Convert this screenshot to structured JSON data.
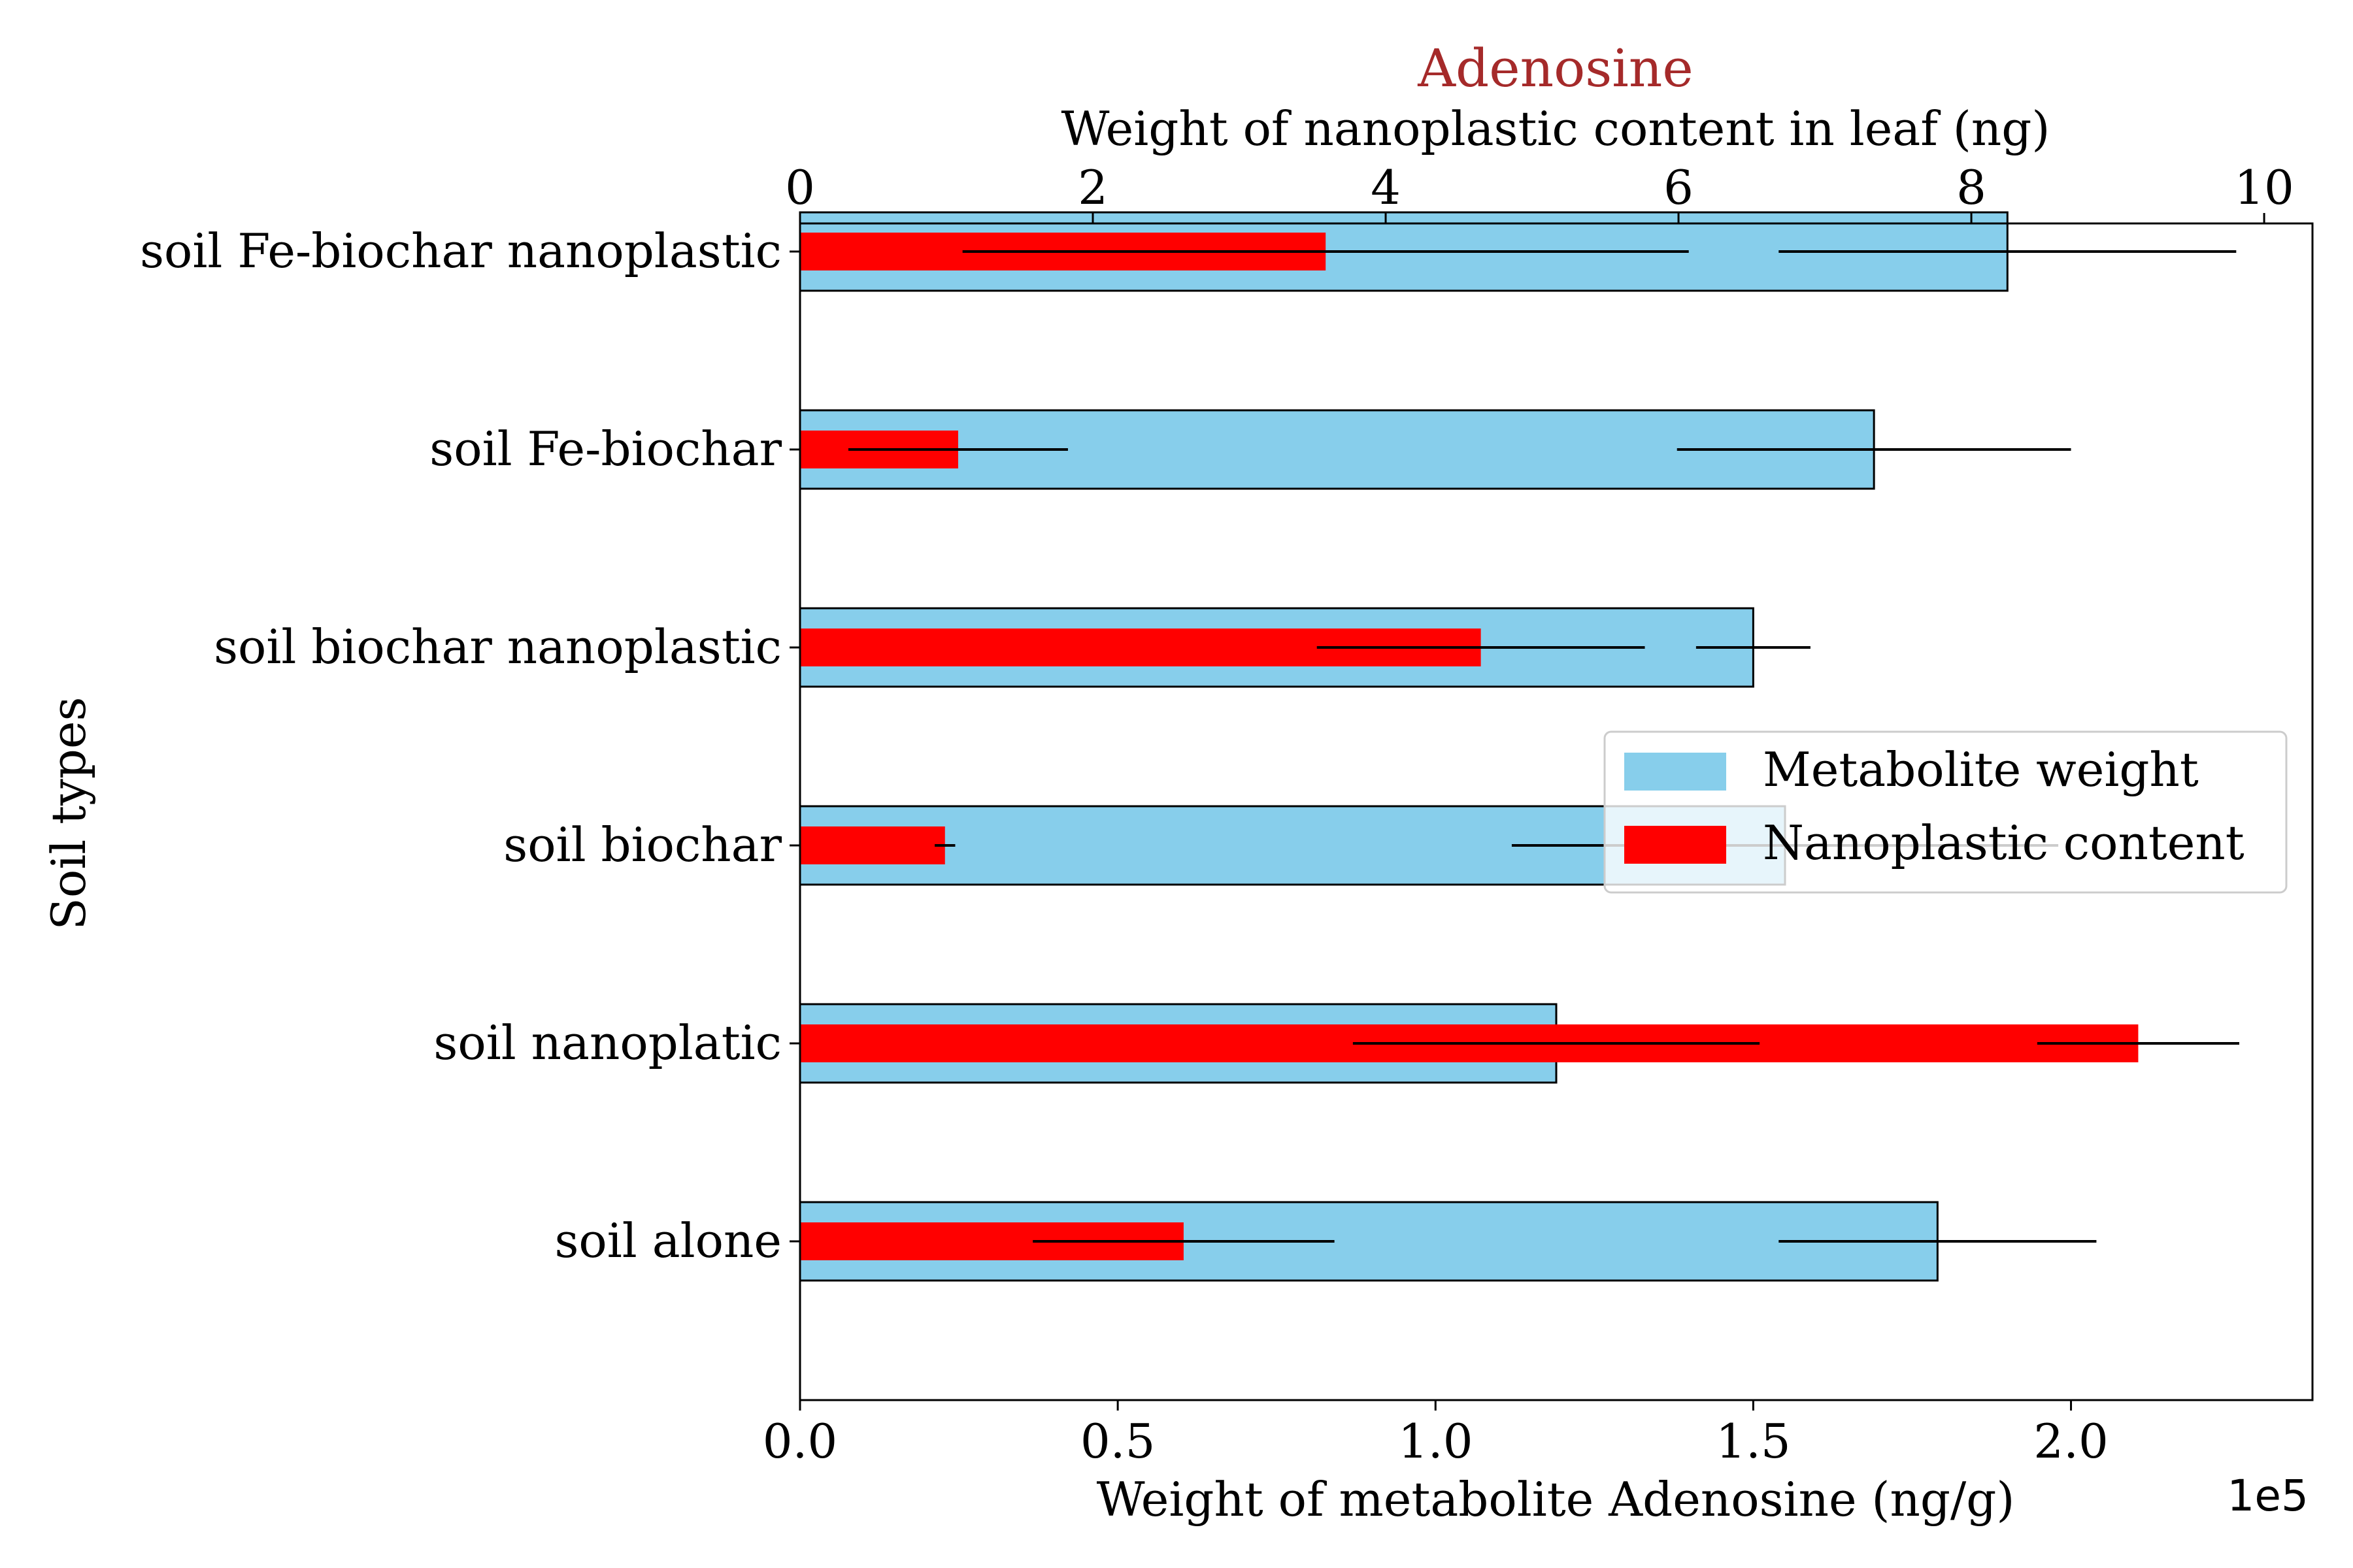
{
  "chart_data": {
    "type": "bar",
    "orientation": "horizontal",
    "title": "Adenosine",
    "title_color": "#a52a2a",
    "ylabel": "Soil types",
    "categories": [
      "soil alone",
      "soil nanoplatic",
      "soil biochar",
      "soil biochar nanoplastic",
      "soil Fe-biochar",
      "soil Fe-biochar nanoplastic"
    ],
    "bottom_axis": {
      "label": "Weight of metabolite Adenosine (ng/g)",
      "offset_text": "1e5",
      "xlim": [
        0,
        2.38
      ],
      "ticks": [
        0.0,
        0.5,
        1.0,
        1.5,
        2.0
      ],
      "tick_labels": [
        "0.0",
        "0.5",
        "1.0",
        "1.5",
        "2.0"
      ]
    },
    "top_axis": {
      "label": "Weight of nanoplastic content in leaf (ng)",
      "xlim": [
        0,
        10.33
      ],
      "ticks": [
        0,
        2,
        4,
        6,
        8,
        10
      ],
      "tick_labels": [
        "0",
        "2",
        "4",
        "6",
        "8",
        "10"
      ]
    },
    "series": [
      {
        "name": "Metabolite weight",
        "axis": "bottom",
        "color": "#87ceeb",
        "values": [
          1.79,
          1.19,
          1.55,
          1.5,
          1.69,
          1.9
        ],
        "errors": [
          0.25,
          0.32,
          0.43,
          0.09,
          0.31,
          0.36
        ]
      },
      {
        "name": "Nanoplastic content",
        "axis": "top",
        "color": "#ff0000",
        "values": [
          2.62,
          9.14,
          0.99,
          4.65,
          1.08,
          3.59
        ],
        "errors": [
          1.03,
          0.69,
          0.07,
          1.12,
          0.75,
          2.48
        ]
      }
    ],
    "legend": {
      "location": "center-right",
      "entries": [
        "Metabolite weight",
        "Nanoplastic content"
      ]
    }
  }
}
